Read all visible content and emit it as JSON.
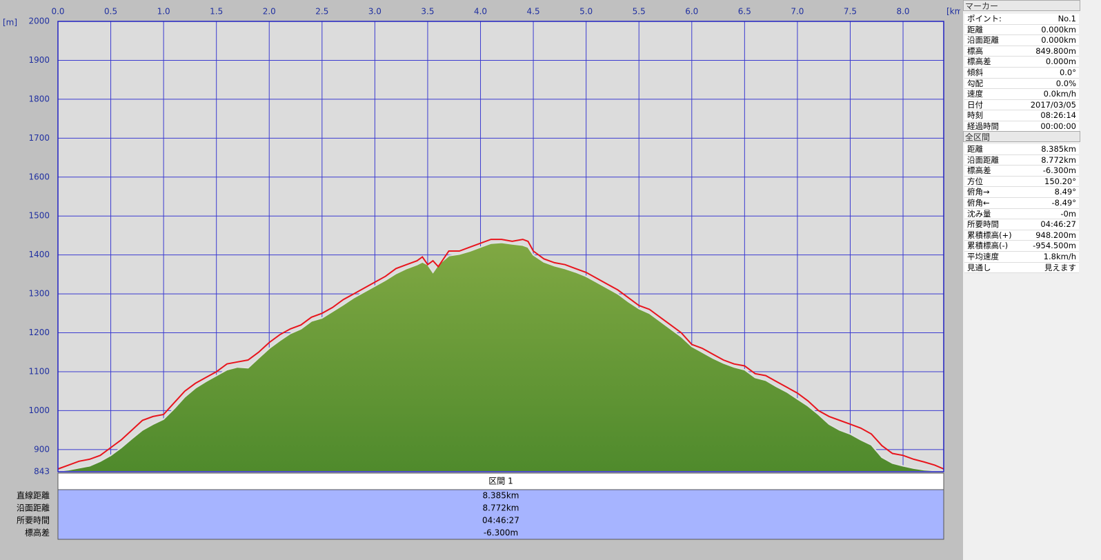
{
  "chart_data": {
    "type": "area-line",
    "x_unit": "[km]",
    "y_unit": "[m]",
    "x": [
      0,
      0.1,
      0.2,
      0.3,
      0.4,
      0.5,
      0.6,
      0.7,
      0.8,
      0.9,
      1.0,
      1.1,
      1.2,
      1.3,
      1.4,
      1.5,
      1.6,
      1.7,
      1.8,
      1.9,
      2.0,
      2.1,
      2.2,
      2.3,
      2.4,
      2.5,
      2.6,
      2.7,
      2.8,
      2.9,
      3.0,
      3.1,
      3.2,
      3.3,
      3.4,
      3.45,
      3.5,
      3.55,
      3.6,
      3.7,
      3.8,
      3.9,
      4.0,
      4.1,
      4.2,
      4.3,
      4.4,
      4.45,
      4.5,
      4.6,
      4.7,
      4.8,
      4.9,
      5.0,
      5.1,
      5.2,
      5.3,
      5.4,
      5.5,
      5.6,
      5.7,
      5.8,
      5.9,
      6.0,
      6.1,
      6.2,
      6.3,
      6.4,
      6.5,
      6.6,
      6.7,
      6.8,
      6.9,
      7.0,
      7.1,
      7.2,
      7.3,
      7.4,
      7.5,
      7.6,
      7.7,
      7.8,
      7.9,
      8.0,
      8.1,
      8.2,
      8.3,
      8.385
    ],
    "series": [
      {
        "color": "#5f9a35",
        "values": [
          845,
          848,
          853,
          858,
          870,
          885,
          905,
          928,
          950,
          965,
          978,
          1005,
          1035,
          1058,
          1075,
          1090,
          1105,
          1112,
          1110,
          1135,
          1160,
          1180,
          1198,
          1210,
          1230,
          1238,
          1255,
          1272,
          1290,
          1305,
          1320,
          1335,
          1352,
          1365,
          1375,
          1382,
          1375,
          1355,
          1375,
          1398,
          1402,
          1410,
          1420,
          1430,
          1432,
          1428,
          1425,
          1420,
          1400,
          1382,
          1372,
          1365,
          1356,
          1345,
          1330,
          1315,
          1300,
          1280,
          1262,
          1250,
          1230,
          1210,
          1190,
          1165,
          1150,
          1135,
          1122,
          1112,
          1105,
          1085,
          1078,
          1062,
          1048,
          1030,
          1012,
          990,
          965,
          950,
          940,
          925,
          912,
          880,
          865,
          858,
          852,
          848,
          846,
          845
        ]
      },
      {
        "color": "#e8141c",
        "values": [
          850,
          860,
          870,
          875,
          885,
          905,
          925,
          950,
          975,
          985,
          990,
          1020,
          1050,
          1070,
          1085,
          1100,
          1120,
          1125,
          1130,
          1150,
          1175,
          1195,
          1210,
          1220,
          1240,
          1250,
          1265,
          1285,
          1300,
          1315,
          1330,
          1345,
          1365,
          1375,
          1385,
          1395,
          1375,
          1385,
          1370,
          1410,
          1410,
          1420,
          1430,
          1440,
          1440,
          1435,
          1440,
          1435,
          1410,
          1390,
          1380,
          1375,
          1365,
          1355,
          1340,
          1325,
          1310,
          1290,
          1270,
          1260,
          1240,
          1220,
          1200,
          1170,
          1160,
          1145,
          1130,
          1120,
          1115,
          1095,
          1090,
          1075,
          1060,
          1045,
          1025,
          1000,
          985,
          975,
          965,
          955,
          940,
          910,
          890,
          885,
          875,
          868,
          860,
          850
        ]
      }
    ],
    "xlim": [
      0,
      8.385
    ],
    "ylim": [
      843,
      2000
    ],
    "xticks": [
      {
        "value": 0,
        "label": "0.0"
      },
      0.5,
      {
        "value": 1,
        "label": "1.0"
      },
      1.5,
      {
        "value": 2,
        "label": "2.0"
      },
      2.5,
      {
        "value": 3,
        "label": "3.0"
      },
      3.5,
      {
        "value": 4,
        "label": "4.0"
      },
      4.5,
      {
        "value": 5,
        "label": "5.0"
      },
      5.5,
      {
        "value": 6,
        "label": "6.0"
      },
      6.5,
      {
        "value": 7,
        "label": "7.0"
      },
      7.5,
      {
        "value": 8,
        "label": "8.0"
      }
    ],
    "yticks": [
      843,
      900,
      1000,
      1100,
      1200,
      1300,
      1400,
      1500,
      1600,
      1700,
      1800,
      1900,
      2000
    ],
    "grid": true
  },
  "marker_panel": {
    "title": "マーカー",
    "rows": [
      [
        "ポイント:",
        "No.1"
      ],
      [
        "距離",
        "0.000km"
      ],
      [
        "沿面距離",
        "0.000km"
      ],
      [
        "標高",
        "849.800m"
      ],
      [
        "標高差",
        "0.000m"
      ],
      [
        "傾斜",
        "0.0°"
      ],
      [
        "勾配",
        "0.0%"
      ],
      [
        "速度",
        "0.0km/h"
      ],
      [
        "日付",
        "2017/03/05"
      ],
      [
        "時刻",
        "08:26:14"
      ],
      [
        "経過時間",
        "00:00:00"
      ]
    ]
  },
  "section_panel": {
    "title": "全区間",
    "rows": [
      [
        "距離",
        "8.385km"
      ],
      [
        "沿面距離",
        "8.772km"
      ],
      [
        "標高差",
        "-6.300m"
      ],
      [
        "方位",
        "150.20°"
      ],
      [
        "俯角→",
        "8.49°"
      ],
      [
        "俯角←",
        "-8.49°"
      ],
      [
        "沈み量",
        "-0m"
      ],
      [
        "所要時間",
        "04:46:27"
      ],
      [
        "累積標高(+)",
        "948.200m"
      ],
      [
        "累積標高(-)",
        "-954.500m"
      ],
      [
        "平均速度",
        "1.8km/h"
      ],
      [
        "見通し",
        "見えます"
      ]
    ]
  },
  "summary_table": {
    "header": "区間 1",
    "rows": [
      [
        "直線距離",
        "8.385km"
      ],
      [
        "沿面距離",
        "8.772km"
      ],
      [
        "所要時間",
        "04:46:27"
      ],
      [
        "標高差",
        "-6.300m"
      ]
    ]
  }
}
